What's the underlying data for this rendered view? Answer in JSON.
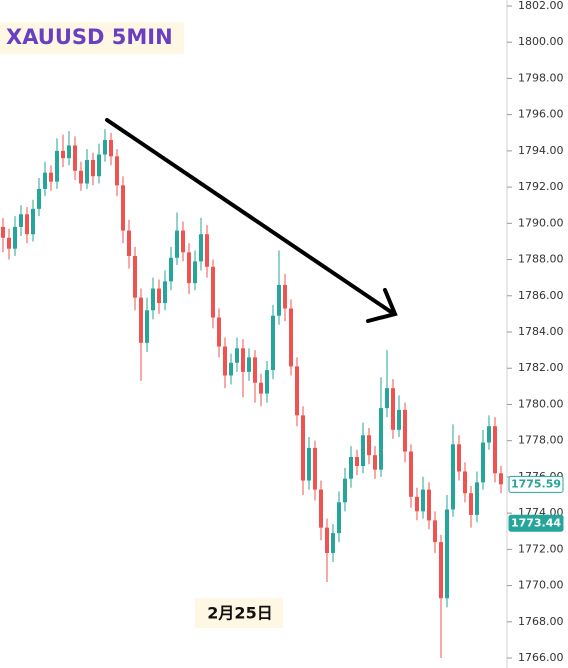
{
  "chart_data": {
    "type": "candlestick",
    "title": "XAUUSD 5MIN",
    "annotation": "2月25日",
    "up_color": "#26a69a",
    "down_color": "#ef5350",
    "ylim": [
      1765.45,
      1802.33
    ],
    "yticks": [
      {
        "value": 1766,
        "label": "1766.00"
      },
      {
        "value": 1768,
        "label": "1768.00"
      },
      {
        "value": 1770,
        "label": "1770.00"
      },
      {
        "value": 1772,
        "label": "1772.00"
      },
      {
        "value": 1774,
        "label": "1774.00"
      },
      {
        "value": 1776,
        "label": "1776.00"
      },
      {
        "value": 1778,
        "label": "1778.00"
      },
      {
        "value": 1780,
        "label": "1780.00"
      },
      {
        "value": 1782,
        "label": "1782.00"
      },
      {
        "value": 1784,
        "label": "1784.00"
      },
      {
        "value": 1786,
        "label": "1786.00"
      },
      {
        "value": 1788,
        "label": "1788.00"
      },
      {
        "value": 1790,
        "label": "1790.00"
      },
      {
        "value": 1792,
        "label": "1792.00"
      },
      {
        "value": 1794,
        "label": "1794.00"
      },
      {
        "value": 1796,
        "label": "1796.00"
      },
      {
        "value": 1798,
        "label": "1798.00"
      },
      {
        "value": 1800,
        "label": "1800.00"
      },
      {
        "value": 1802,
        "label": "1802.00"
      }
    ],
    "price_labels": [
      1775.59,
      1773.44
    ],
    "open": [
      1789.8,
      1789.2,
      1788.6,
      1789.8,
      1790.5,
      1789.4,
      1790.8,
      1791.9,
      1792.8,
      1792.3,
      1794.0,
      1793.6,
      1794.3,
      1792.9,
      1792.2,
      1793.5,
      1792.6,
      1793.8,
      1794.6,
      1793.7,
      1792.1,
      1789.6,
      1788.2,
      1785.9,
      1783.4,
      1785.2,
      1786.4,
      1785.6,
      1786.8,
      1788.1,
      1789.6,
      1788.4,
      1786.7,
      1787.9,
      1789.4,
      1787.6,
      1784.8,
      1783.2,
      1781.6,
      1782.3,
      1783.1,
      1781.8,
      1782.6,
      1781.2,
      1780.6,
      1781.9,
      1784.9,
      1786.6,
      1785.3,
      1782.1,
      1779.4,
      1775.8,
      1777.6,
      1775.3,
      1773.2,
      1771.8,
      1772.9,
      1774.6,
      1775.9,
      1777.1,
      1776.6,
      1778.3,
      1777.2,
      1776.4,
      1779.8,
      1780.9,
      1778.6,
      1779.7,
      1777.4,
      1774.9,
      1774.1,
      1775.3,
      1773.6,
      1772.4,
      1769.3,
      1774.2,
      1777.8,
      1776.3,
      1775.1,
      1773.9,
      1775.7,
      1777.9,
      1778.8,
      1776.2
    ],
    "high": [
      1790.3,
      1789.7,
      1790.4,
      1791.0,
      1790.9,
      1791.3,
      1792.5,
      1793.4,
      1793.2,
      1794.7,
      1794.9,
      1795.1,
      1794.8,
      1793.4,
      1794.1,
      1793.9,
      1794.4,
      1795.2,
      1795.0,
      1794.1,
      1792.6,
      1790.2,
      1788.7,
      1786.4,
      1785.9,
      1787.0,
      1786.9,
      1787.4,
      1788.7,
      1790.6,
      1790.1,
      1788.9,
      1788.5,
      1790.3,
      1789.9,
      1788.0,
      1785.3,
      1783.7,
      1782.8,
      1783.7,
      1783.6,
      1783.1,
      1783.0,
      1781.7,
      1782.4,
      1785.5,
      1788.5,
      1787.2,
      1785.8,
      1782.6,
      1779.9,
      1778.2,
      1778.0,
      1775.8,
      1773.7,
      1773.4,
      1775.2,
      1776.5,
      1777.7,
      1777.5,
      1779.0,
      1778.7,
      1777.7,
      1781.5,
      1783.0,
      1781.4,
      1780.5,
      1780.1,
      1777.8,
      1775.4,
      1776.0,
      1775.7,
      1774.1,
      1772.8,
      1775.0,
      1778.9,
      1778.3,
      1776.8,
      1775.5,
      1776.3,
      1778.6,
      1779.4,
      1779.3,
      1776.6
    ],
    "low": [
      1788.4,
      1788.0,
      1788.2,
      1789.3,
      1788.9,
      1789.0,
      1790.4,
      1791.5,
      1791.8,
      1791.9,
      1793.1,
      1793.2,
      1792.4,
      1791.8,
      1791.9,
      1792.1,
      1792.2,
      1793.4,
      1793.2,
      1791.5,
      1788.9,
      1787.5,
      1785.2,
      1781.3,
      1782.9,
      1784.7,
      1785.0,
      1785.2,
      1786.3,
      1787.7,
      1787.9,
      1786.1,
      1786.3,
      1787.4,
      1787.0,
      1784.2,
      1782.6,
      1780.9,
      1781.1,
      1781.8,
      1780.4,
      1781.3,
      1780.1,
      1779.9,
      1780.1,
      1781.4,
      1784.4,
      1784.6,
      1781.6,
      1778.8,
      1775.0,
      1775.3,
      1774.7,
      1772.5,
      1770.2,
      1771.3,
      1772.4,
      1774.1,
      1775.4,
      1776.1,
      1776.2,
      1776.7,
      1775.9,
      1776.0,
      1779.3,
      1778.1,
      1778.2,
      1776.8,
      1774.3,
      1773.6,
      1773.7,
      1773.1,
      1771.8,
      1766.0,
      1768.8,
      1773.8,
      1775.8,
      1774.6,
      1773.2,
      1773.5,
      1775.3,
      1777.5,
      1775.7,
      1775.1
    ],
    "close": [
      1789.2,
      1788.6,
      1789.8,
      1790.5,
      1789.4,
      1790.8,
      1791.9,
      1792.8,
      1792.3,
      1794.0,
      1793.6,
      1794.3,
      1792.9,
      1792.2,
      1793.5,
      1792.6,
      1793.8,
      1794.6,
      1793.7,
      1792.1,
      1789.6,
      1788.2,
      1785.9,
      1783.4,
      1785.2,
      1786.4,
      1785.6,
      1786.8,
      1788.1,
      1789.6,
      1788.4,
      1786.7,
      1787.9,
      1789.4,
      1787.6,
      1784.8,
      1783.2,
      1781.6,
      1782.3,
      1783.1,
      1781.8,
      1782.6,
      1781.2,
      1780.6,
      1781.9,
      1784.9,
      1786.6,
      1785.3,
      1782.1,
      1779.4,
      1775.8,
      1777.6,
      1775.3,
      1773.2,
      1771.8,
      1772.9,
      1774.6,
      1775.9,
      1777.1,
      1776.6,
      1778.3,
      1777.2,
      1776.4,
      1779.8,
      1780.9,
      1778.6,
      1779.7,
      1777.4,
      1774.9,
      1774.1,
      1775.3,
      1773.6,
      1772.4,
      1769.3,
      1774.2,
      1777.8,
      1776.3,
      1775.1,
      1773.9,
      1775.7,
      1777.9,
      1778.8,
      1776.2,
      1775.59
    ]
  }
}
